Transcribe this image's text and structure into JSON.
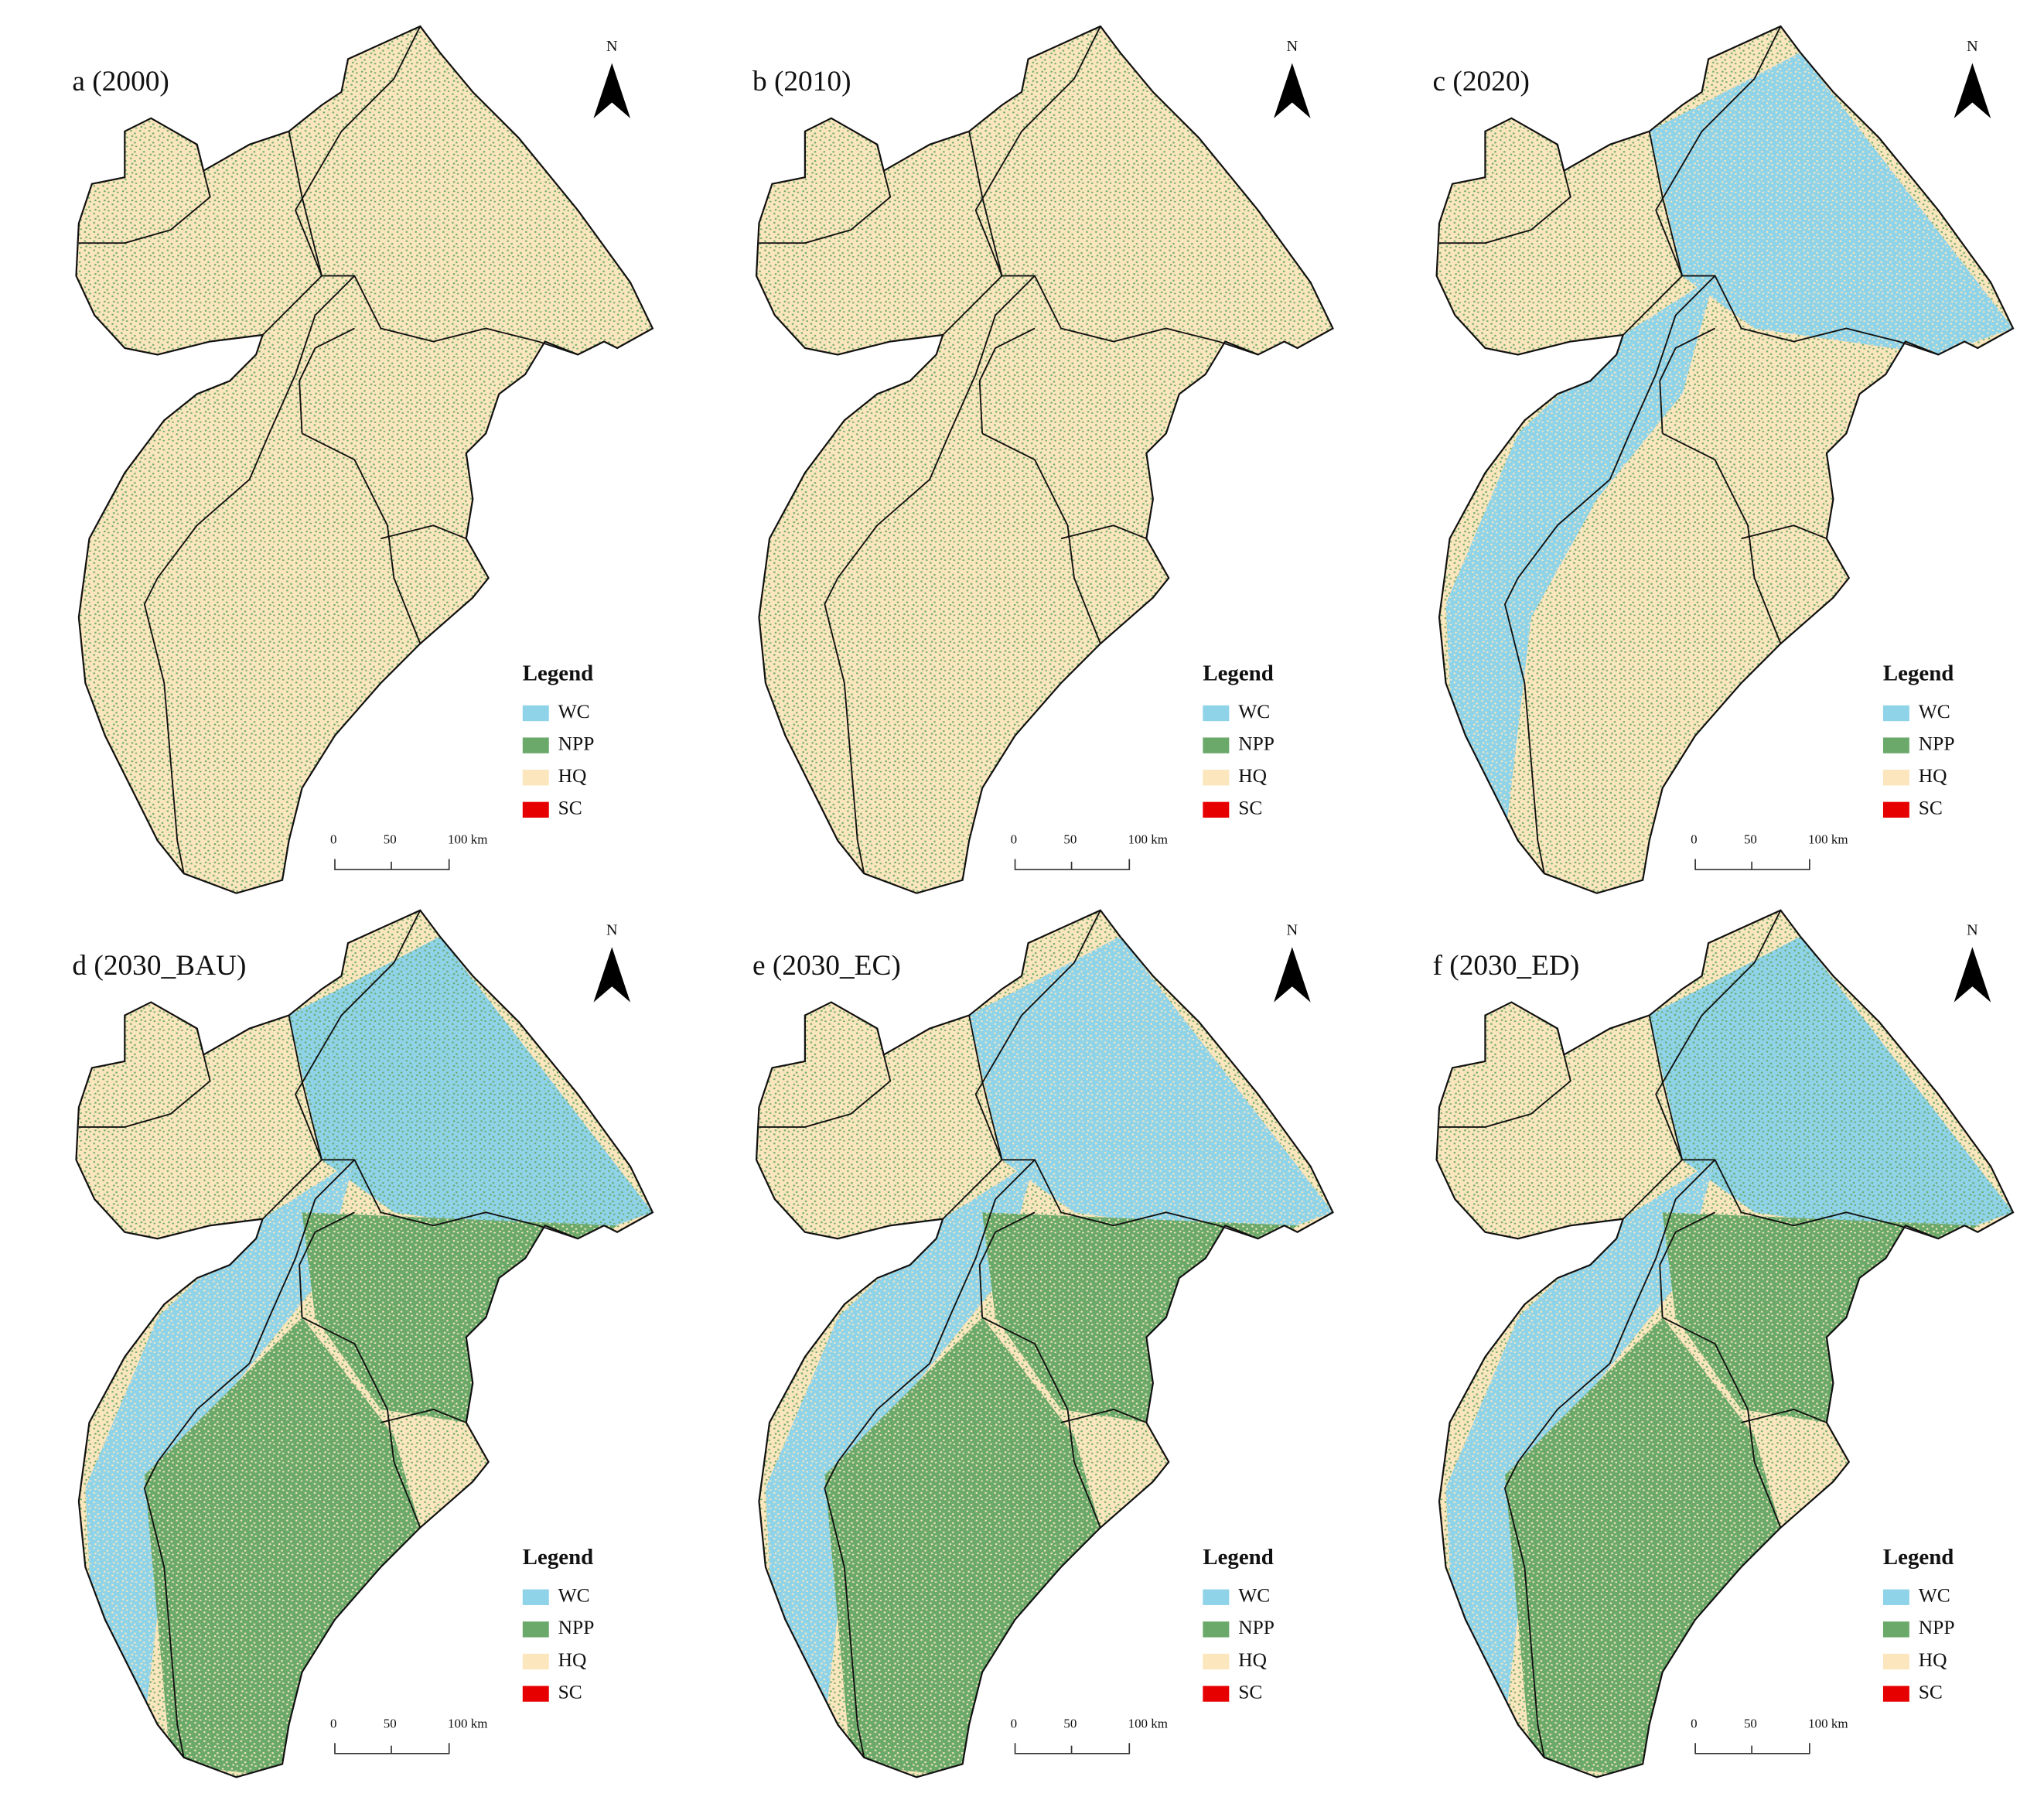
{
  "panels": [
    {
      "label": "a (2000)",
      "north": "N",
      "legend": {
        "title": "Legend",
        "items": [
          {
            "label": "WC",
            "color": "#8fd3e9"
          },
          {
            "label": "NPP",
            "color": "#6aa96a"
          },
          {
            "label": "HQ",
            "color": "#fbe6bd"
          },
          {
            "label": "SC",
            "color": "#e60000"
          }
        ]
      },
      "scale_bar": [
        "0",
        "50",
        "100 km"
      ]
    },
    {
      "label": "b (2010)",
      "north": "N",
      "legend": {
        "title": "Legend",
        "items": [
          {
            "label": "WC",
            "color": "#8fd3e9"
          },
          {
            "label": "NPP",
            "color": "#6aa96a"
          },
          {
            "label": "HQ",
            "color": "#fbe6bd"
          },
          {
            "label": "SC",
            "color": "#e60000"
          }
        ]
      },
      "scale_bar": [
        "0",
        "50",
        "100 km"
      ]
    },
    {
      "label": "c (2020)",
      "north": "N",
      "legend": {
        "title": "Legend",
        "items": [
          {
            "label": "WC",
            "color": "#8fd3e9"
          },
          {
            "label": "NPP",
            "color": "#6aa96a"
          },
          {
            "label": "HQ",
            "color": "#fbe6bd"
          },
          {
            "label": "SC",
            "color": "#e60000"
          }
        ]
      },
      "scale_bar": [
        "0",
        "50",
        "100 km"
      ]
    },
    {
      "label": "d (2030_BAU)",
      "north": "N",
      "legend": {
        "title": "Legend",
        "items": [
          {
            "label": "WC",
            "color": "#8fd3e9"
          },
          {
            "label": "NPP",
            "color": "#6aa96a"
          },
          {
            "label": "HQ",
            "color": "#fbe6bd"
          },
          {
            "label": "SC",
            "color": "#e60000"
          }
        ]
      },
      "scale_bar": [
        "0",
        "50",
        "100 km"
      ]
    },
    {
      "label": "e (2030_EC)",
      "north": "N",
      "legend": {
        "title": "Legend",
        "items": [
          {
            "label": "WC",
            "color": "#8fd3e9"
          },
          {
            "label": "NPP",
            "color": "#6aa96a"
          },
          {
            "label": "HQ",
            "color": "#fbe6bd"
          },
          {
            "label": "SC",
            "color": "#e60000"
          }
        ]
      },
      "scale_bar": [
        "0",
        "50",
        "100 km"
      ]
    },
    {
      "label": "f (2030_ED)",
      "north": "N",
      "legend": {
        "title": "Legend",
        "items": [
          {
            "label": "WC",
            "color": "#8fd3e9"
          },
          {
            "label": "NPP",
            "color": "#6aa96a"
          },
          {
            "label": "HQ",
            "color": "#fbe6bd"
          },
          {
            "label": "SC",
            "color": "#e60000"
          }
        ]
      },
      "scale_bar": [
        "0",
        "50",
        "100 km"
      ]
    }
  ]
}
